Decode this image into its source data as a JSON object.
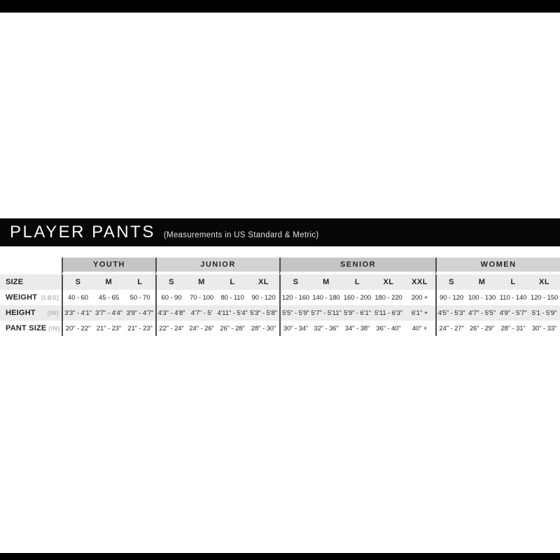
{
  "colors": {
    "page_bg": "#ffffff",
    "bar_black": "#000000",
    "header_bg": "#070707",
    "header_text": "#f7f7f7",
    "header_subtext": "#e2e2e2",
    "group_header_dark": "#c5c5c5",
    "group_header_light": "#d3d3d3",
    "stripe_gray": "#ebebeb",
    "divider_dark": "#4d4d4d",
    "cell_text": "#23232d",
    "unit_text": "#b3b3b3"
  },
  "header": {
    "title": "PLAYER PANTS",
    "subtitle": "(Measurements in US Standard & Metric)"
  },
  "table": {
    "groups": [
      {
        "label": "YOUTH",
        "shade": "dark",
        "cols": 3
      },
      {
        "label": "JUNIOR",
        "shade": "light",
        "cols": 4
      },
      {
        "label": "SENIOR",
        "shade": "dark",
        "cols": 5
      },
      {
        "label": "WOMEN",
        "shade": "light",
        "cols": 4
      }
    ],
    "rows": [
      {
        "label": "SIZE",
        "unit": "",
        "emphasis": true,
        "values": [
          "S",
          "M",
          "L",
          "S",
          "M",
          "L",
          "XL",
          "S",
          "M",
          "L",
          "XL",
          "XXL",
          "S",
          "M",
          "L",
          "XL"
        ]
      },
      {
        "label": "WEIGHT",
        "unit": "[LBS]",
        "emphasis": false,
        "values": [
          "40 - 60",
          "45 - 65",
          "50 - 70",
          "60 - 90",
          "70 - 100",
          "80 - 110",
          "90 - 120",
          "120 - 160",
          "140 - 180",
          "160 - 200",
          "180 - 220",
          "200 +",
          "90 - 120",
          "100 - 130",
          "110 - 140",
          "120 - 150"
        ]
      },
      {
        "label": "HEIGHT",
        "unit": "[IN]",
        "emphasis": false,
        "values": [
          "3'3\" - 4'1\"",
          "3'7\" - 4'4\"",
          "3'9\" - 4'7\"",
          "4'3\" - 4'8\"",
          "4'7\" - 5'",
          "4'11\" - 5'4\"",
          "5'3\" - 5'8\"",
          "5'5\" - 5'9\"",
          "5'7\" - 5'11\"",
          "5'9\" - 6'1\"",
          "5'11 - 6'3\"",
          "6'1\" +",
          "4'5\" - 5'3\"",
          "4'7\" - 5'5\"",
          "4'9\" - 5'7\"",
          "5'1 - 5'9\""
        ]
      },
      {
        "label": "PANT SIZE",
        "unit": "[IN]",
        "emphasis": false,
        "values": [
          "20\" - 22\"",
          "21\" - 23\"",
          "21\" - 23\"",
          "22\" - 24\"",
          "24\" - 26\"",
          "26\" - 28\"",
          "28\" - 30\"",
          "30\" - 34\"",
          "32\" - 36\"",
          "34\" - 38\"",
          "36\" - 40\"",
          "40\" +",
          "24\" - 27\"",
          "26\" - 29\"",
          "28\" - 31\"",
          "30\" - 33\""
        ]
      }
    ]
  }
}
